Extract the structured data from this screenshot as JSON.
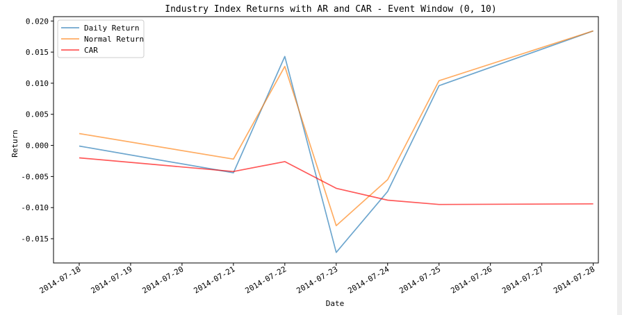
{
  "chart_data": {
    "type": "line",
    "title": "Industry Index Returns with AR and CAR - Event Window (0, 10)",
    "xlabel": "Date",
    "ylabel": "Return",
    "x_ticks": [
      "2014-07-18",
      "2014-07-19",
      "2014-07-20",
      "2014-07-21",
      "2014-07-22",
      "2014-07-23",
      "2014-07-24",
      "2014-07-25",
      "2014-07-26",
      "2014-07-27",
      "2014-07-28"
    ],
    "x_range": [
      "2014-07-17.5",
      "2014-07-28.1"
    ],
    "y_ticks": [
      "0.020",
      "0.015",
      "0.010",
      "0.005",
      "0.000",
      "-0.005",
      "-0.010",
      "-0.015"
    ],
    "ylim": [
      -0.0189,
      0.0207
    ],
    "grid": false,
    "legend_position": "top-left",
    "series": [
      {
        "name": "Daily Return",
        "color": "#1f77b4",
        "x": [
          "2014-07-18",
          "2014-07-21",
          "2014-07-22",
          "2014-07-23",
          "2014-07-24",
          "2014-07-25",
          "2014-07-28"
        ],
        "values": [
          -0.0001,
          -0.0044,
          0.0143,
          -0.0172,
          -0.0074,
          0.0096,
          0.0184
        ]
      },
      {
        "name": "Normal Return",
        "color": "#ff7f0e",
        "x": [
          "2014-07-18",
          "2014-07-21",
          "2014-07-22",
          "2014-07-23",
          "2014-07-24",
          "2014-07-25",
          "2014-07-28"
        ],
        "values": [
          0.0019,
          -0.0022,
          0.0127,
          -0.0129,
          -0.0055,
          0.0104,
          0.0184
        ]
      },
      {
        "name": "CAR",
        "color": "#ff0000",
        "x": [
          "2014-07-18",
          "2014-07-21",
          "2014-07-22",
          "2014-07-23",
          "2014-07-24",
          "2014-07-25",
          "2014-07-28"
        ],
        "values": [
          -0.002,
          -0.0042,
          -0.0026,
          -0.0069,
          -0.0088,
          -0.0095,
          -0.0094
        ]
      }
    ]
  }
}
